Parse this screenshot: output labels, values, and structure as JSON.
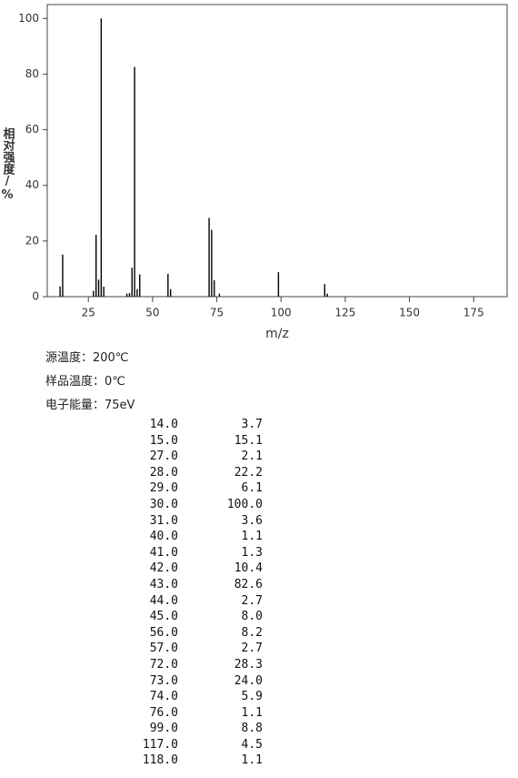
{
  "chart_data": {
    "type": "stick",
    "y_label": "相对强度/%",
    "x_label": "m/z",
    "x": [
      14,
      15,
      27,
      28,
      29,
      30,
      31,
      40,
      41,
      42,
      43,
      44,
      45,
      56,
      57,
      72,
      73,
      74,
      76,
      99,
      117,
      118
    ],
    "values": [
      3.7,
      15.1,
      2.1,
      22.2,
      6.1,
      100,
      3.6,
      1.1,
      1.3,
      10.4,
      82.6,
      2.7,
      8.0,
      8.2,
      2.7,
      28.3,
      24.0,
      5.9,
      1.1,
      8.8,
      4.5,
      1.1
    ],
    "color": "#000000",
    "xlim": [
      9,
      188
    ],
    "xticks": [
      25,
      50,
      75,
      100,
      125,
      150,
      175
    ],
    "ylim": [
      0,
      105
    ],
    "yticks": [
      0,
      20,
      40,
      60,
      80,
      100
    ]
  },
  "info": [
    "源温度：200℃",
    "样品温度：0℃",
    "电子能量：75eV"
  ],
  "table": {
    "rows": [
      [
        "14.0",
        "3.7"
      ],
      [
        "15.0",
        "15.1"
      ],
      [
        "27.0",
        "2.1"
      ],
      [
        "28.0",
        "22.2"
      ],
      [
        "29.0",
        "6.1"
      ],
      [
        "30.0",
        "100.0"
      ],
      [
        "31.0",
        "3.6"
      ],
      [
        "40.0",
        "1.1"
      ],
      [
        "41.0",
        "1.3"
      ],
      [
        "42.0",
        "10.4"
      ],
      [
        "43.0",
        "82.6"
      ],
      [
        "44.0",
        "2.7"
      ],
      [
        "45.0",
        "8.0"
      ],
      [
        "56.0",
        "8.2"
      ],
      [
        "57.0",
        "2.7"
      ],
      [
        "72.0",
        "28.3"
      ],
      [
        "73.0",
        "24.0"
      ],
      [
        "74.0",
        "5.9"
      ],
      [
        "76.0",
        "1.1"
      ],
      [
        "99.0",
        "8.8"
      ],
      [
        "117.0",
        "4.5"
      ],
      [
        "118.0",
        "1.1"
      ]
    ]
  }
}
